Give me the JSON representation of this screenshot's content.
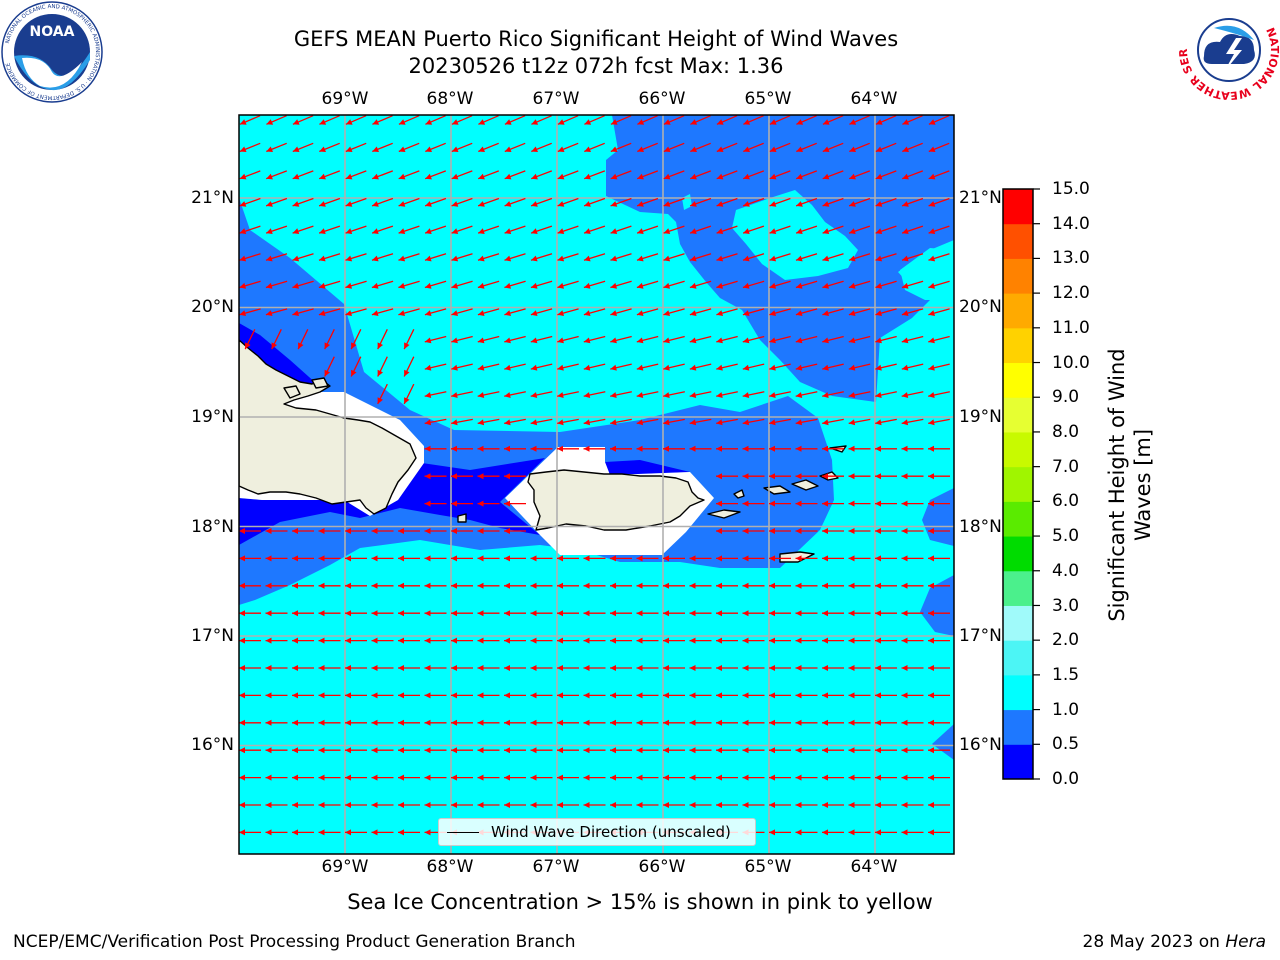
{
  "title": {
    "line1": "GEFS MEAN Puerto Rico Significant Height of Wind Waves",
    "line2": "20230526 t12z 072h fcst   Max: 1.36"
  },
  "map": {
    "lon_labels": [
      "69°W",
      "68°W",
      "67°W",
      "66°W",
      "65°W",
      "64°W"
    ],
    "lat_labels": [
      "21°N",
      "20°N",
      "19°N",
      "18°N",
      "17°N",
      "16°N"
    ],
    "colors": {
      "band_0_0.5": "#0000ff",
      "band_0.5_1.0": "#1e78ff",
      "band_1.0_1.5": "#00ffff",
      "land": "#efefde",
      "grid": "#b0b0b0",
      "arrow": "#ff0000"
    },
    "arrow_direction": "westward",
    "legend_text": "Wind Wave Direction (unscaled)"
  },
  "colorbar": {
    "label_line1": "Significant Height of Wind",
    "label_line2": "Waves [m]",
    "ticks": [
      "0.0",
      "0.5",
      "1.0",
      "1.5",
      "2.0",
      "3.0",
      "4.0",
      "5.0",
      "6.0",
      "7.0",
      "8.0",
      "9.0",
      "10.0",
      "11.0",
      "12.0",
      "13.0",
      "14.0",
      "15.0"
    ],
    "colors": [
      "#0000ff",
      "#1e78ff",
      "#00ffff",
      "#4cf5f5",
      "#a0fafa",
      "#4bf08c",
      "#00dc00",
      "#5aeb00",
      "#a0f500",
      "#c8fa00",
      "#e6ff32",
      "#ffff00",
      "#ffd200",
      "#ffaa00",
      "#ff8200",
      "#ff5000",
      "#ff0000"
    ]
  },
  "subtitle": "Sea Ice Concentration > 15% is shown in pink to yellow",
  "footer": {
    "left": "NCEP/EMC/Verification Post Processing Product Generation Branch",
    "right_date": "28 May 2023 on ",
    "right_machine": "Hera"
  },
  "logos": {
    "noaa_text": "NOAA",
    "noaa_ring": "NATIONAL OCEANIC AND ATMOSPHERIC ADMINISTRATION · U.S. DEPARTMENT OF COMMERCE",
    "nws_ring": "NATIONAL WEATHER SERVICE"
  }
}
